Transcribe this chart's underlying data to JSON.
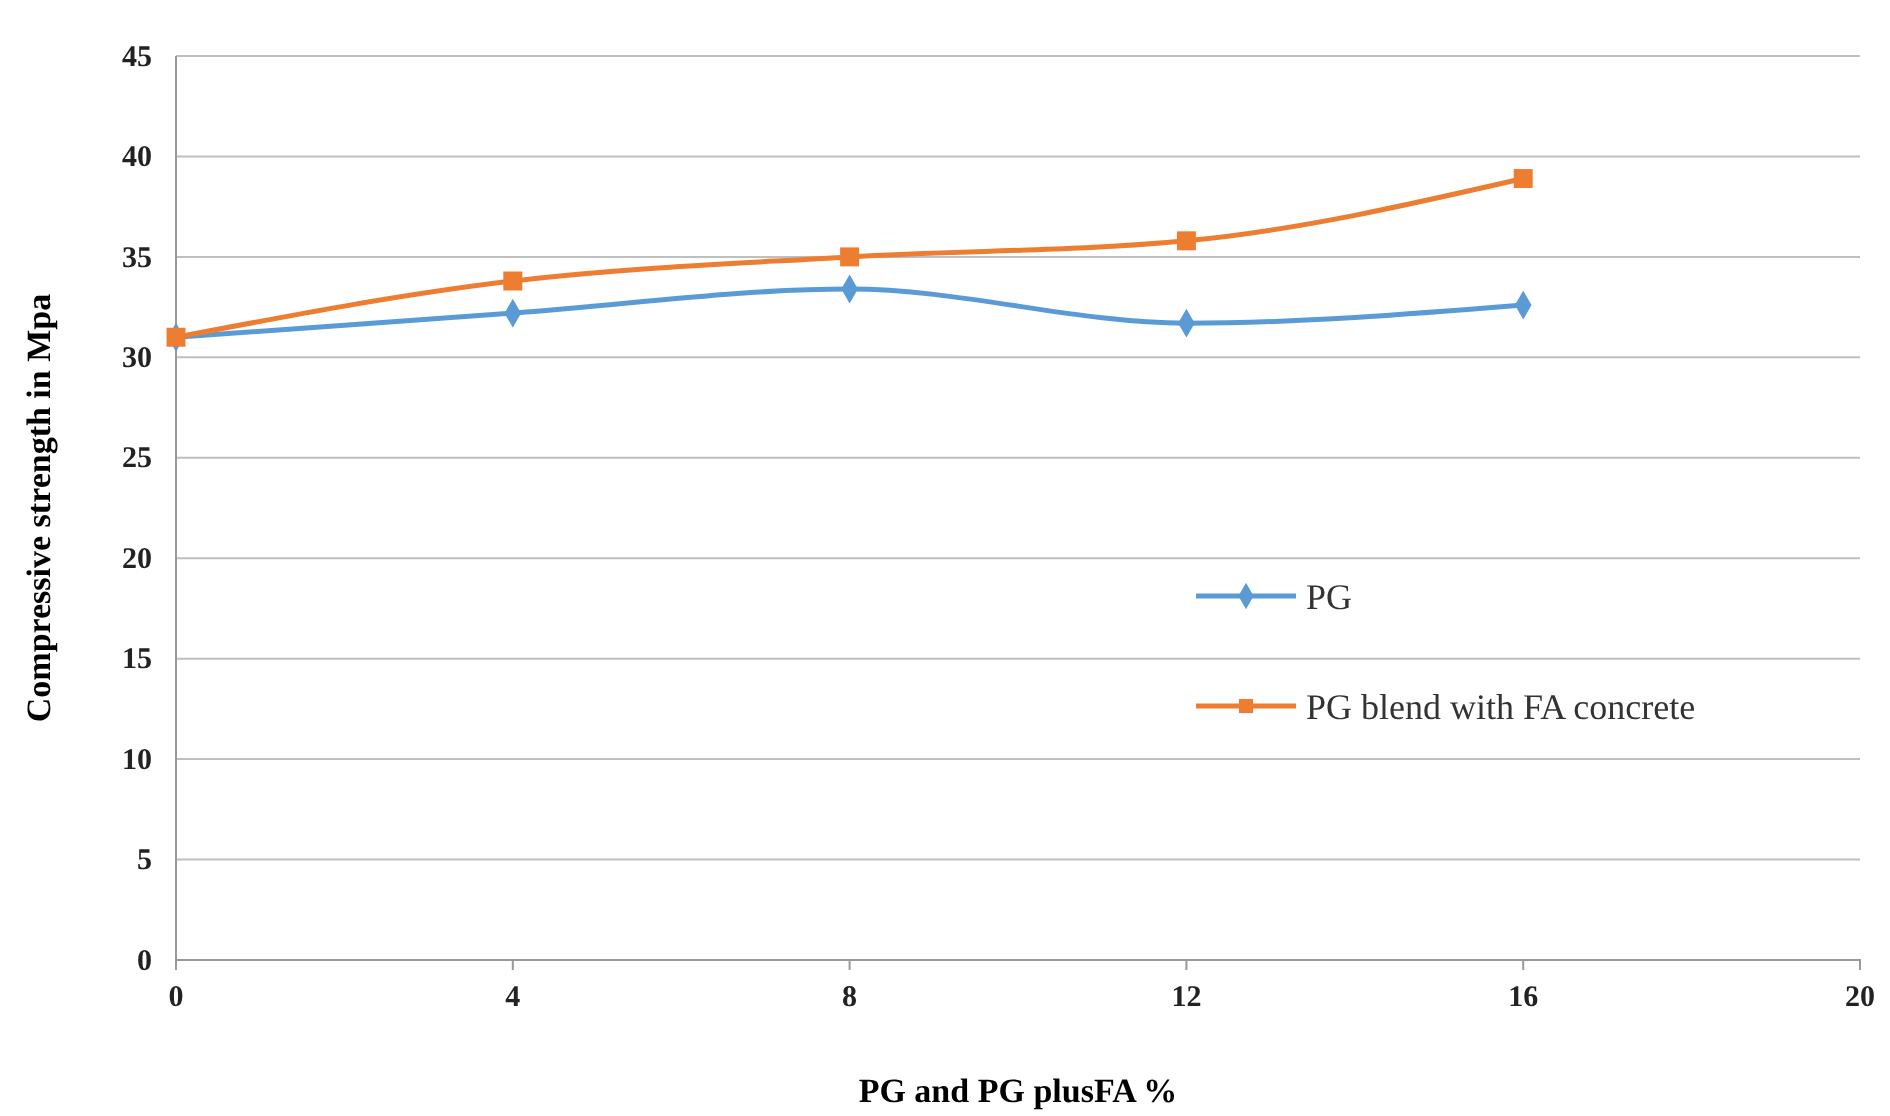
{
  "chart_data": {
    "type": "line",
    "xlabel": "PG and PG plusFA %",
    "ylabel": "Compressive strength in Mpa",
    "x": [
      0,
      4,
      8,
      12,
      16
    ],
    "series": [
      {
        "name": "PG",
        "color": "#5b9bd5",
        "marker": "diamond",
        "values": [
          31.0,
          32.2,
          33.4,
          31.7,
          32.6
        ]
      },
      {
        "name": "PG blend with FA concrete",
        "color": "#ed7d31",
        "marker": "square",
        "values": [
          31.0,
          33.8,
          35.0,
          35.8,
          38.9
        ]
      }
    ],
    "xlim": [
      0,
      20
    ],
    "xticks": [
      0,
      4,
      8,
      12,
      16,
      20
    ],
    "ylim": [
      0,
      45
    ],
    "yticks": [
      0,
      5,
      10,
      15,
      20,
      25,
      30,
      35,
      40,
      45
    ],
    "grid": "y",
    "legend": "right"
  }
}
